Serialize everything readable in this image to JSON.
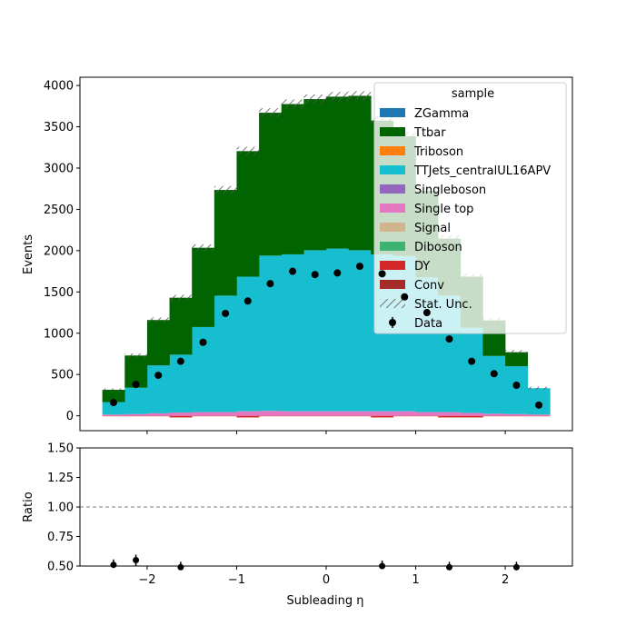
{
  "chart_data": [
    {
      "type": "bar",
      "panel": "main",
      "stacked": true,
      "ylabel": "Events",
      "xlim": [
        -2.75,
        2.75
      ],
      "ylim": [
        -180,
        4100
      ],
      "yticks": [
        0,
        500,
        1000,
        1500,
        2000,
        2500,
        3000,
        3500,
        4000
      ],
      "xticks": [
        -2,
        -1,
        0,
        1,
        2
      ],
      "bin_edges": [
        -2.5,
        -2.25,
        -2.0,
        -1.75,
        -1.5,
        -1.25,
        -1.0,
        -0.75,
        -0.5,
        -0.25,
        0.0,
        0.25,
        0.5,
        0.75,
        1.0,
        1.25,
        1.5,
        1.75,
        2.0,
        2.25,
        2.5
      ],
      "series": [
        {
          "name": "Conv",
          "color": "#a52a2a",
          "values": [
            0,
            0,
            0,
            0,
            0,
            0,
            0,
            0,
            0,
            0,
            0,
            0,
            0,
            0,
            0,
            0,
            0,
            0,
            0,
            0
          ]
        },
        {
          "name": "DY",
          "color": "#d62728",
          "values": [
            -5,
            -5,
            -5,
            -20,
            -5,
            -5,
            -20,
            -5,
            -5,
            -5,
            -5,
            -5,
            -20,
            -5,
            -5,
            -20,
            -20,
            -5,
            -5,
            -5
          ]
        },
        {
          "name": "Diboson",
          "color": "#3cb371",
          "values": [
            0,
            0,
            0,
            0,
            0,
            0,
            0,
            0,
            0,
            0,
            0,
            0,
            0,
            0,
            0,
            0,
            0,
            0,
            0,
            0
          ]
        },
        {
          "name": "Signal",
          "color": "#d2b48c",
          "values": [
            0,
            0,
            0,
            0,
            0,
            0,
            0,
            0,
            0,
            0,
            0,
            0,
            0,
            0,
            0,
            0,
            0,
            0,
            0,
            0
          ]
        },
        {
          "name": "Single top",
          "color": "#e377c2",
          "values": [
            15,
            20,
            30,
            40,
            45,
            45,
            55,
            60,
            55,
            55,
            55,
            55,
            55,
            55,
            45,
            45,
            35,
            25,
            20,
            15
          ]
        },
        {
          "name": "Singleboson",
          "color": "#9467bd",
          "values": [
            0,
            0,
            0,
            0,
            0,
            0,
            0,
            0,
            0,
            0,
            0,
            0,
            0,
            0,
            0,
            0,
            0,
            0,
            0,
            0
          ]
        },
        {
          "name": "TTJets_centralUL16APV",
          "color": "#17becf",
          "values": [
            150,
            320,
            580,
            700,
            1030,
            1410,
            1630,
            1880,
            1900,
            1950,
            1970,
            1950,
            1900,
            1880,
            1630,
            1410,
            1030,
            700,
            580,
            320
          ]
        },
        {
          "name": "Triboson",
          "color": "#ff7f0e",
          "values": [
            0,
            0,
            0,
            0,
            0,
            0,
            0,
            0,
            0,
            0,
            0,
            0,
            0,
            0,
            0,
            0,
            0,
            0,
            0,
            0
          ]
        },
        {
          "name": "Ttbar",
          "color": "#006400",
          "values": [
            150,
            390,
            550,
            690,
            960,
            1280,
            1520,
            1730,
            1820,
            1830,
            1840,
            1870,
            1620,
            1450,
            1050,
            690,
            620,
            430,
            170,
            0
          ]
        },
        {
          "name": "ZGamma",
          "color": "#1f77b4",
          "values": [
            0,
            0,
            0,
            0,
            0,
            0,
            0,
            0,
            0,
            0,
            0,
            0,
            0,
            0,
            0,
            0,
            0,
            0,
            0,
            0
          ]
        }
      ],
      "data": {
        "name": "Data",
        "x": [
          -2.375,
          -2.125,
          -1.875,
          -1.625,
          -1.375,
          -1.125,
          -0.875,
          -0.625,
          -0.375,
          -0.125,
          0.125,
          0.375,
          0.625,
          0.875,
          1.125,
          1.375,
          1.625,
          1.875,
          2.125,
          2.375
        ],
        "y": [
          160,
          380,
          490,
          660,
          890,
          1240,
          1390,
          1600,
          1750,
          1710,
          1730,
          1810,
          1720,
          1440,
          1250,
          930,
          660,
          510,
          370,
          130
        ]
      },
      "legend": {
        "title": "sample",
        "location": "upper right",
        "entries": [
          "ZGamma",
          "Ttbar",
          "Triboson",
          "TTJets_centralUL16APV",
          "Singleboson",
          "Single top",
          "Signal",
          "Diboson",
          "DY",
          "Conv",
          "Stat. Unc.",
          "Data"
        ]
      }
    },
    {
      "type": "scatter",
      "panel": "ratio",
      "xlabel": "Subleading η",
      "ylabel": "Ratio",
      "xlim": [
        -2.75,
        2.75
      ],
      "ylim": [
        0.5,
        1.5
      ],
      "yticks": [
        "0.50",
        "0.75",
        "1.00",
        "1.25",
        "1.50"
      ],
      "xticks": [
        "−2",
        "−1",
        "0",
        "1",
        "2"
      ],
      "reference_line": 1.0,
      "x": [
        -2.375,
        -2.125,
        -1.625,
        0.625,
        1.375,
        2.125
      ],
      "y": [
        0.51,
        0.55,
        0.49,
        0.5,
        0.49,
        0.49
      ]
    }
  ]
}
